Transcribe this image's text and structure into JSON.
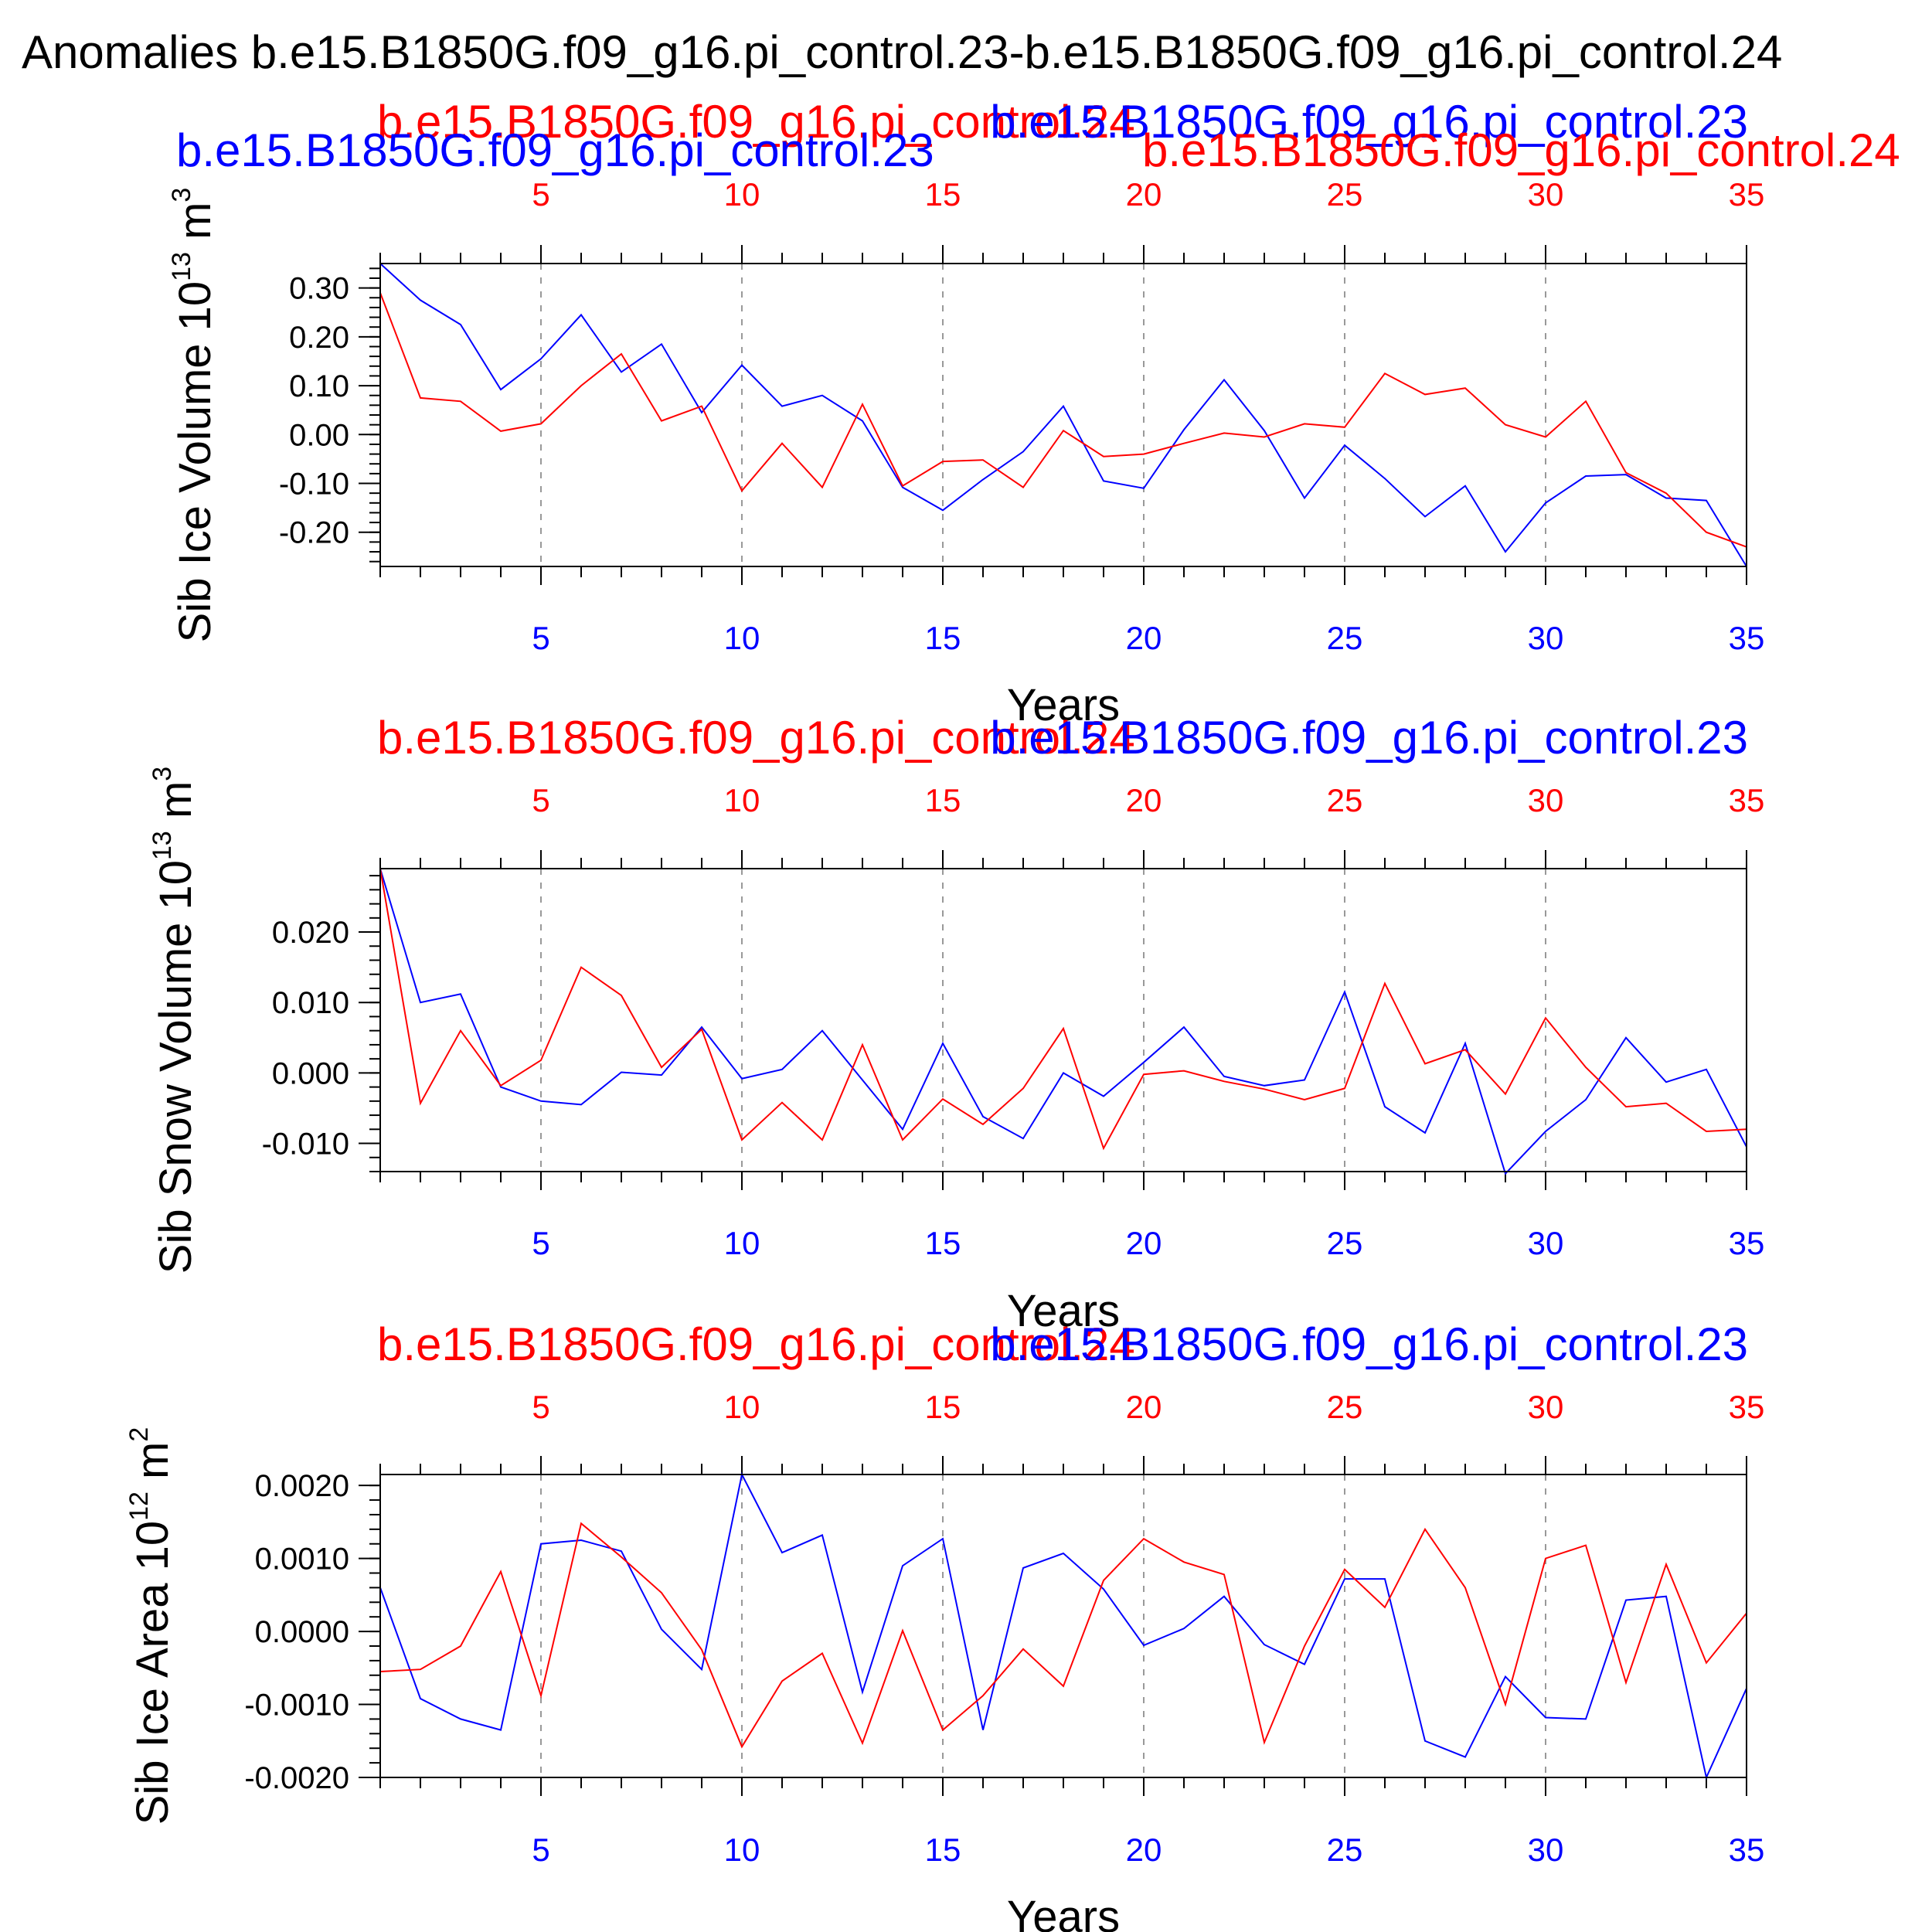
{
  "figure": {
    "title": "Anomalies b.e15.B1850G.f09_g16.pi_control.23-b.e15.B1850G.f09_g16.pi_control.24",
    "colors": {
      "run23": "#0000ff",
      "run24": "#ff0000",
      "frame": "#000000",
      "grid": "#999999"
    }
  },
  "chart_data": [
    {
      "type": "line",
      "ylabel": "Sib Ice Volume 10",
      "ylabel_exp": "13",
      "ylabel_unit": " m",
      "ylabel_unit_exp": "3",
      "xlabel": "Years",
      "xlim": [
        1,
        35
      ],
      "ylim": [
        -0.27,
        0.35
      ],
      "yticks": [
        0.3,
        0.2,
        0.1,
        0.0,
        -0.1,
        -0.2
      ],
      "ytick_labels": [
        "0.30",
        "0.20",
        "0.10",
        "0.00",
        "-0.10",
        "-0.20"
      ],
      "ytick_minor_step": 0.02,
      "xticks": [
        5,
        10,
        15,
        20,
        25,
        30,
        35
      ],
      "xtick_labels_top": [
        "5",
        "10",
        "15",
        "20",
        "25",
        "30",
        "35"
      ],
      "xtick_labels_bottom": [
        "5",
        "10",
        "15",
        "20",
        "25",
        "30",
        "35"
      ],
      "top_labels": [
        {
          "text": "b.e15.B1850G.f09_g16.pi_control.24",
          "color": "#ff0000"
        },
        {
          "text": "b.e15.B1850G.f09_g16.pi_control.23",
          "color": "#0000ff"
        }
      ],
      "extra_labels": [
        {
          "text": "b.e15.B1850G.f09_g16.pi_control.23",
          "color": "#0000ff"
        },
        {
          "text": "b.e15.B1850G.f09_g16.pi_control.24",
          "color": "#ff0000"
        }
      ],
      "x": [
        1,
        2,
        3,
        4,
        5,
        6,
        7,
        8,
        9,
        10,
        11,
        12,
        13,
        14,
        15,
        16,
        17,
        18,
        19,
        20,
        21,
        22,
        23,
        24,
        25,
        26,
        27,
        28,
        29,
        30,
        31,
        32,
        33,
        34,
        35
      ],
      "series": [
        {
          "name": "b.e15.B1850G.f09_g16.pi_control.23",
          "color": "#0000ff",
          "values": [
            0.35,
            0.275,
            0.225,
            0.092,
            0.155,
            0.245,
            0.128,
            0.185,
            0.045,
            0.142,
            0.058,
            0.08,
            0.028,
            -0.108,
            -0.155,
            -0.092,
            -0.035,
            0.058,
            -0.095,
            -0.11,
            0.01,
            0.112,
            0.008,
            -0.13,
            -0.022,
            -0.09,
            -0.168,
            -0.105,
            -0.24,
            -0.14,
            -0.085,
            -0.082,
            -0.13,
            -0.135,
            -0.27
          ]
        },
        {
          "name": "b.e15.B1850G.f09_g16.pi_control.24",
          "color": "#ff0000",
          "values": [
            0.29,
            0.075,
            0.068,
            0.007,
            0.022,
            0.1,
            0.165,
            0.028,
            0.058,
            -0.115,
            -0.018,
            -0.108,
            0.062,
            -0.105,
            -0.055,
            -0.052,
            -0.108,
            0.008,
            -0.045,
            -0.04,
            -0.018,
            0.003,
            -0.005,
            0.022,
            0.015,
            0.125,
            0.082,
            0.095,
            0.02,
            -0.005,
            0.068,
            -0.078,
            -0.12,
            -0.2,
            -0.23
          ]
        }
      ]
    },
    {
      "type": "line",
      "ylabel": "Sib Snow Volume 10",
      "ylabel_exp": "13",
      "ylabel_unit": " m",
      "ylabel_unit_exp": "3",
      "xlabel": "Years",
      "xlim": [
        1,
        35
      ],
      "ylim": [
        -0.014,
        0.029
      ],
      "yticks": [
        0.02,
        0.01,
        0.0,
        -0.01
      ],
      "ytick_labels": [
        "0.020",
        "0.010",
        "0.000",
        "-0.010"
      ],
      "ytick_minor_step": 0.002,
      "xticks": [
        5,
        10,
        15,
        20,
        25,
        30,
        35
      ],
      "xtick_labels_top": [
        "5",
        "10",
        "15",
        "20",
        "25",
        "30",
        "35"
      ],
      "xtick_labels_bottom": [
        "5",
        "10",
        "15",
        "20",
        "25",
        "30",
        "35"
      ],
      "top_labels": [
        {
          "text": "b.e15.B1850G.f09_g16.pi_control.24",
          "color": "#ff0000"
        },
        {
          "text": "b.e15.B1850G.f09_g16.pi_control.23",
          "color": "#0000ff"
        }
      ],
      "x": [
        1,
        2,
        3,
        4,
        5,
        6,
        7,
        8,
        9,
        10,
        11,
        12,
        13,
        14,
        15,
        16,
        17,
        18,
        19,
        20,
        21,
        22,
        23,
        24,
        25,
        26,
        27,
        28,
        29,
        30,
        31,
        32,
        33,
        34,
        35
      ],
      "series": [
        {
          "name": "b.e15.B1850G.f09_g16.pi_control.23",
          "color": "#0000ff",
          "values": [
            0.029,
            0.01,
            0.0112,
            -0.002,
            -0.004,
            -0.0045,
            0.0001,
            -0.0003,
            0.0065,
            -0.0008,
            0.0005,
            0.006,
            -0.001,
            -0.008,
            0.0042,
            -0.0062,
            -0.0093,
            0.0,
            -0.0033,
            0.0015,
            0.0065,
            -0.0005,
            -0.0018,
            -0.001,
            0.0115,
            -0.0048,
            -0.0085,
            0.0042,
            -0.0143,
            -0.0083,
            -0.0038,
            0.005,
            -0.0013,
            0.0005,
            -0.0105
          ]
        },
        {
          "name": "b.e15.B1850G.f09_g16.pi_control.24",
          "color": "#ff0000",
          "values": [
            0.029,
            -0.0043,
            0.006,
            -0.0018,
            0.0018,
            0.015,
            0.011,
            0.0008,
            0.0062,
            -0.0095,
            -0.0042,
            -0.0095,
            0.004,
            -0.0095,
            -0.0037,
            -0.0073,
            -0.0022,
            0.0063,
            -0.0107,
            -0.0002,
            0.0003,
            -0.0012,
            -0.0023,
            -0.0038,
            -0.0022,
            0.0127,
            0.0013,
            0.0033,
            -0.003,
            0.0078,
            0.0008,
            -0.0048,
            -0.0043,
            -0.0083,
            -0.008
          ]
        }
      ]
    },
    {
      "type": "line",
      "ylabel": "Sib Ice Area 10",
      "ylabel_exp": "12",
      "ylabel_unit": " m",
      "ylabel_unit_exp": "2",
      "xlabel": "Years",
      "xlim": [
        1,
        35
      ],
      "ylim": [
        -0.002,
        0.00215
      ],
      "yticks": [
        0.002,
        0.001,
        0.0,
        -0.001,
        -0.002
      ],
      "ytick_labels": [
        "0.0020",
        "0.0010",
        "0.0000",
        "-0.0010",
        "-0.0020"
      ],
      "ytick_minor_step": 0.0002,
      "xticks": [
        5,
        10,
        15,
        20,
        25,
        30,
        35
      ],
      "xtick_labels_top": [
        "5",
        "10",
        "15",
        "20",
        "25",
        "30",
        "35"
      ],
      "xtick_labels_bottom": [
        "5",
        "10",
        "15",
        "20",
        "25",
        "30",
        "35"
      ],
      "top_labels": [
        {
          "text": "b.e15.B1850G.f09_g16.pi_control.24",
          "color": "#ff0000"
        },
        {
          "text": "b.e15.B1850G.f09_g16.pi_control.23",
          "color": "#0000ff"
        }
      ],
      "x": [
        1,
        2,
        3,
        4,
        5,
        6,
        7,
        8,
        9,
        10,
        11,
        12,
        13,
        14,
        15,
        16,
        17,
        18,
        19,
        20,
        21,
        22,
        23,
        24,
        25,
        26,
        27,
        28,
        29,
        30,
        31,
        32,
        33,
        34,
        35
      ],
      "series": [
        {
          "name": "b.e15.B1850G.f09_g16.pi_control.23",
          "color": "#0000ff",
          "values": [
            0.0006,
            -0.00092,
            -0.0012,
            -0.00135,
            0.0012,
            0.00125,
            0.0011,
            3e-05,
            -0.00052,
            0.00215,
            0.00108,
            0.00132,
            -0.00083,
            0.0009,
            0.00127,
            -0.00135,
            0.00087,
            0.00107,
            0.00058,
            -0.00019,
            4e-05,
            0.00048,
            -0.00018,
            -0.00045,
            0.00072,
            0.00072,
            -0.0015,
            -0.00172,
            -0.00062,
            -0.00118,
            -0.0012,
            0.00043,
            0.00048,
            -0.002,
            -0.00078
          ]
        },
        {
          "name": "b.e15.B1850G.f09_g16.pi_control.24",
          "color": "#ff0000",
          "values": [
            -0.00055,
            -0.00052,
            -0.0002,
            0.00082,
            -0.00088,
            0.00148,
            0.00102,
            0.00053,
            -0.00025,
            -0.00158,
            -0.00068,
            -0.0003,
            -0.00153,
            1e-05,
            -0.00135,
            -0.00088,
            -0.00024,
            -0.00075,
            0.0007,
            0.00127,
            0.00095,
            0.00078,
            -0.00152,
            -0.0002,
            0.00085,
            0.00033,
            0.0014,
            0.0006,
            -0.001,
            0.001,
            0.00118,
            -0.0007,
            0.00092,
            -0.00043,
            0.00025
          ]
        }
      ]
    }
  ]
}
